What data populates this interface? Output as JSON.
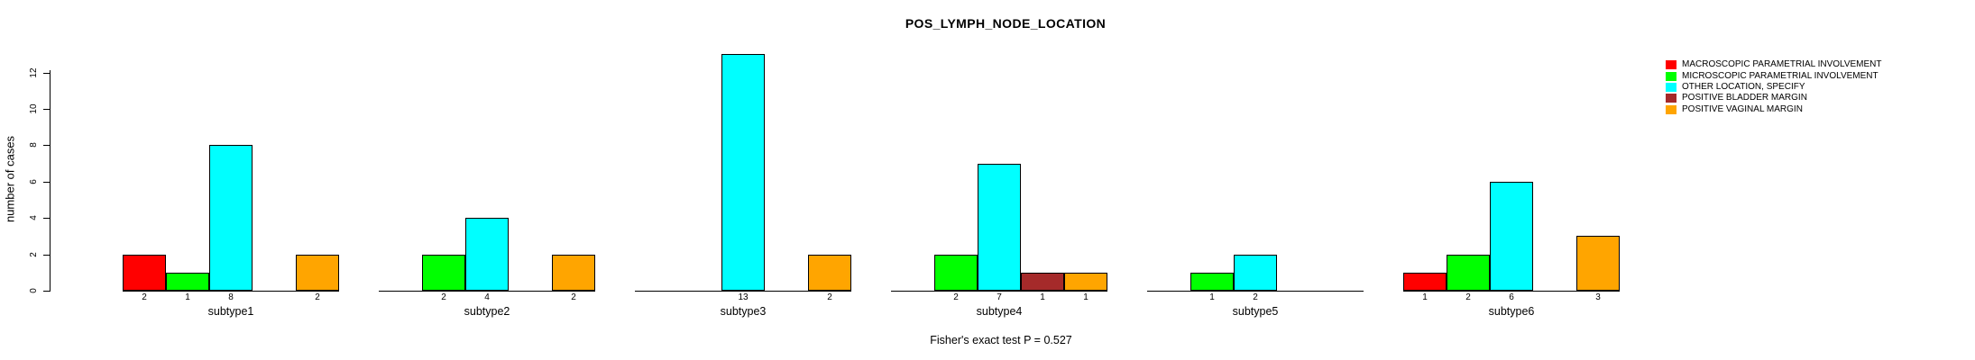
{
  "title": "POS_LYMPH_NODE_LOCATION",
  "footer_annotation": "Fisher's exact test P = 0.527",
  "chart_data": {
    "type": "bar",
    "title": "POS_LYMPH_NODE_LOCATION",
    "xlabel": "",
    "ylabel": "number of cases",
    "ylim": [
      0,
      13
    ],
    "yticks": [
      0,
      2,
      4,
      6,
      8,
      10,
      12
    ],
    "grid": false,
    "legend_position": "right",
    "show_bar_value_labels": true,
    "annotation": "Fisher's exact test P = 0.527",
    "categories": [
      "subtype1",
      "subtype2",
      "subtype3",
      "subtype4",
      "subtype5",
      "subtype6"
    ],
    "series": [
      {
        "name": "MACROSCOPIC PARAMETRIAL INVOLVEMENT",
        "color": "#FF0000",
        "values": [
          2,
          0,
          0,
          0,
          0,
          1
        ]
      },
      {
        "name": "MICROSCOPIC PARAMETRIAL INVOLVEMENT",
        "color": "#00FF00",
        "values": [
          1,
          2,
          0,
          2,
          1,
          2
        ]
      },
      {
        "name": "OTHER LOCATION, SPECIFY",
        "color": "#00FFFF",
        "values": [
          8,
          4,
          13,
          7,
          2,
          6
        ]
      },
      {
        "name": "POSITIVE BLADDER MARGIN",
        "color": "#A52A2A",
        "values": [
          0,
          0,
          0,
          1,
          0,
          0
        ]
      },
      {
        "name": "POSITIVE VAGINAL MARGIN",
        "color": "#FFA500",
        "values": [
          2,
          2,
          2,
          1,
          0,
          3
        ]
      }
    ]
  }
}
